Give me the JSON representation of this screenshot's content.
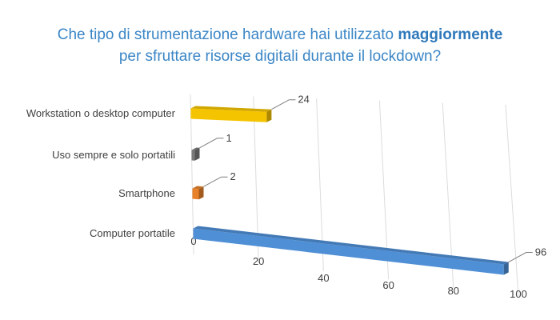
{
  "chart_data": {
    "type": "bar",
    "orientation": "horizontal",
    "style": "3d",
    "title": {
      "part1": "Che tipo di strumentazione hardware hai utilizzato",
      "emphasis": "maggiormente",
      "line2": "per sfruttare risorse digitali durante il lockdown?"
    },
    "categories": [
      "Workstation o desktop computer",
      "Uso sempre e solo portatili",
      "Smartphone",
      "Computer portatile"
    ],
    "values": [
      24,
      1,
      2,
      96
    ],
    "bar_colors": [
      "#f5c400",
      "#7a7a7a",
      "#e8822a",
      "#4f8fd6"
    ],
    "xlim": [
      0,
      100
    ],
    "xticks": [
      0,
      20,
      40,
      60,
      80,
      100
    ],
    "grid": true,
    "legend": "none"
  }
}
